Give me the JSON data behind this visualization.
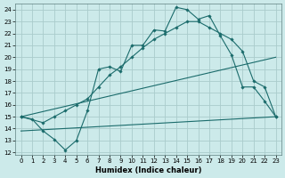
{
  "xlabel": "Humidex (Indice chaleur)",
  "bg_color": "#cceaea",
  "grid_color": "#aacccc",
  "line_color": "#1a6b6b",
  "xlim": [
    -0.5,
    23.5
  ],
  "ylim": [
    11.8,
    24.5
  ],
  "yticks": [
    12,
    13,
    14,
    15,
    16,
    17,
    18,
    19,
    20,
    21,
    22,
    23,
    24
  ],
  "xticks": [
    0,
    1,
    2,
    3,
    4,
    5,
    6,
    7,
    8,
    9,
    10,
    11,
    12,
    13,
    14,
    15,
    16,
    17,
    18,
    19,
    20,
    21,
    22,
    23
  ],
  "line1_x": [
    0,
    1,
    2,
    3,
    4,
    5,
    6,
    7,
    8,
    9,
    10,
    11,
    12,
    13,
    14,
    15,
    16,
    17,
    18,
    19,
    20,
    21,
    22,
    23
  ],
  "line1_y": [
    15.0,
    14.8,
    13.8,
    13.1,
    12.2,
    13.0,
    15.5,
    19.0,
    19.2,
    18.8,
    21.0,
    21.0,
    22.3,
    22.2,
    24.2,
    24.0,
    23.2,
    23.5,
    21.8,
    20.2,
    17.5,
    17.5,
    16.3,
    15.0
  ],
  "line2_x": [
    0,
    2,
    3,
    4,
    5,
    6,
    7,
    8,
    9,
    10,
    11,
    12,
    13,
    14,
    15,
    16,
    17,
    18,
    19,
    20,
    21,
    22,
    23
  ],
  "line2_y": [
    15.0,
    14.5,
    15.0,
    15.5,
    16.0,
    16.5,
    17.5,
    18.5,
    19.2,
    20.0,
    20.8,
    21.5,
    22.0,
    22.5,
    23.0,
    23.0,
    22.5,
    22.0,
    21.5,
    20.5,
    18.0,
    17.5,
    15.0
  ],
  "line3_x": [
    0,
    23
  ],
  "line3_y": [
    15.0,
    20.0
  ],
  "line4_x": [
    0,
    23
  ],
  "line4_y": [
    13.8,
    15.0
  ]
}
